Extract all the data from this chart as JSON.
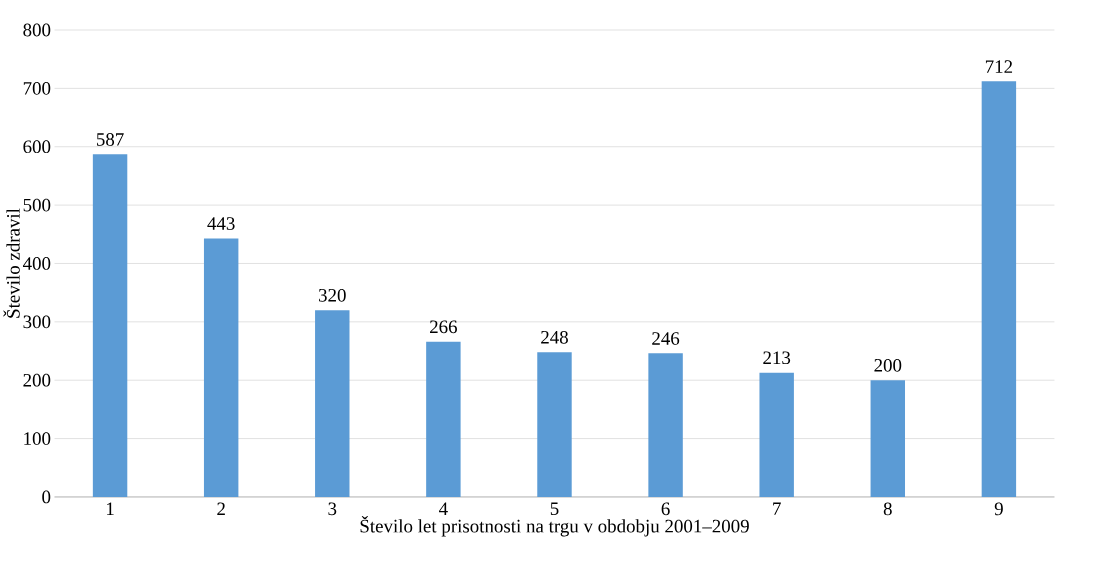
{
  "chart_data": {
    "type": "bar",
    "xlabel": "Število let prisotnosti na trgu v obdobju 2001–2009",
    "ylabel": "Število zdravil",
    "categories": [
      "1",
      "2",
      "3",
      "4",
      "5",
      "6",
      "7",
      "8",
      "9"
    ],
    "values": [
      587,
      443,
      320,
      266,
      248,
      246,
      213,
      200,
      712
    ],
    "color": "#5b9bd5",
    "ylim": [
      0,
      800
    ],
    "yticks": [
      0,
      100,
      200,
      300,
      400,
      500,
      600,
      700,
      800
    ],
    "grid": "y",
    "data_labels": true
  }
}
